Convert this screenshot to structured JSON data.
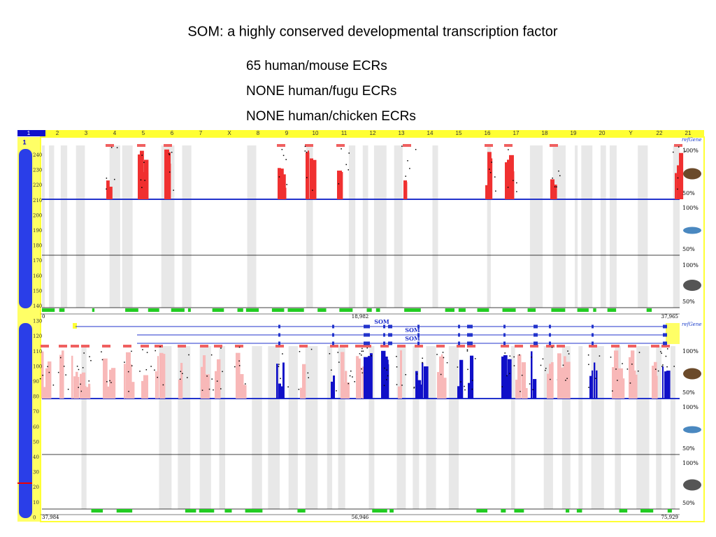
{
  "title": "SOM: a highly conserved developmental transcription factor",
  "ecr_summary": [
    "65 human/mouse ECRs",
    "NONE human/fugu ECRs",
    "NONE human/chicken ECRs"
  ],
  "browser": {
    "chromosome_tabs": [
      "1",
      "2",
      "3",
      "4",
      "5",
      "6",
      "7",
      "X",
      "8",
      "9",
      "10",
      "11",
      "12",
      "13",
      "14",
      "15",
      "16",
      "17",
      "18",
      "19",
      "20",
      "Y",
      "22",
      "21"
    ],
    "chromosome_label": "1",
    "axis_labels": [
      240,
      230,
      220,
      210,
      200,
      190,
      180,
      170,
      160,
      150,
      140,
      130,
      120,
      110,
      100,
      90,
      80,
      70,
      60,
      50,
      40,
      30,
      20,
      10,
      0
    ],
    "panels": [
      {
        "refgene_label": "refGene",
        "coordinates": [
          "0",
          "18,982",
          "37,965"
        ],
        "tracks": [
          {
            "upper": "100%",
            "lower": "50%"
          },
          {
            "upper": "100%",
            "lower": "50%"
          },
          {
            "upper": "100%",
            "lower": "50%"
          }
        ]
      },
      {
        "refgene_label": "refGene",
        "genes": [
          "SOM",
          "SOM",
          "SOM"
        ],
        "coordinates": [
          "37,984",
          "56,946",
          "75,929"
        ],
        "tracks": [
          {
            "upper": "100%",
            "lower": "50%"
          },
          {
            "upper": "100%",
            "lower": "50%"
          },
          {
            "upper": "100%",
            "lower": "50%"
          }
        ]
      }
    ]
  }
}
